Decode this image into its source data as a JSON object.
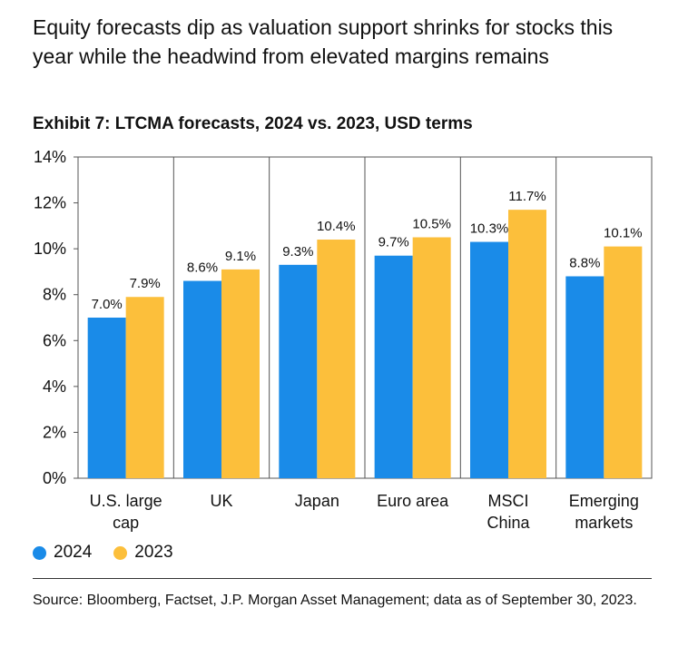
{
  "headline": "Equity forecasts dip as valuation support shrinks for stocks this year while the headwind from elevated margins remains",
  "source": "Source: Bloomberg, Factset, J.P. Morgan Asset Management; data as of September 30, 2023.",
  "colors": {
    "2024": "#1a8be8",
    "2023": "#fcbf3b",
    "axis": "#555555"
  },
  "chart_data": {
    "type": "bar",
    "title": "Exhibit 7: LTCMA forecasts, 2024 vs. 2023, USD terms",
    "categories": [
      [
        "U.S. large",
        "cap"
      ],
      [
        "UK"
      ],
      [
        "Japan"
      ],
      [
        "Euro area"
      ],
      [
        "MSCI",
        "China"
      ],
      [
        "Emerging",
        "markets"
      ]
    ],
    "series": [
      {
        "name": "2024",
        "values": [
          7.0,
          8.6,
          9.3,
          9.7,
          10.3,
          8.8
        ],
        "labels": [
          "7.0%",
          "8.6%",
          "9.3%",
          "9.7%",
          "10.3%",
          "8.8%"
        ]
      },
      {
        "name": "2023",
        "values": [
          7.9,
          9.1,
          10.4,
          10.5,
          11.7,
          10.1
        ],
        "labels": [
          "7.9%",
          "9.1%",
          "10.4%",
          "10.5%",
          "11.7%",
          "10.1%"
        ]
      }
    ],
    "yticks": [
      "0%",
      "2%",
      "4%",
      "6%",
      "8%",
      "10%",
      "12%",
      "14%"
    ],
    "ylim": [
      0,
      14
    ],
    "legend_position": "bottom-left",
    "grid": true
  }
}
